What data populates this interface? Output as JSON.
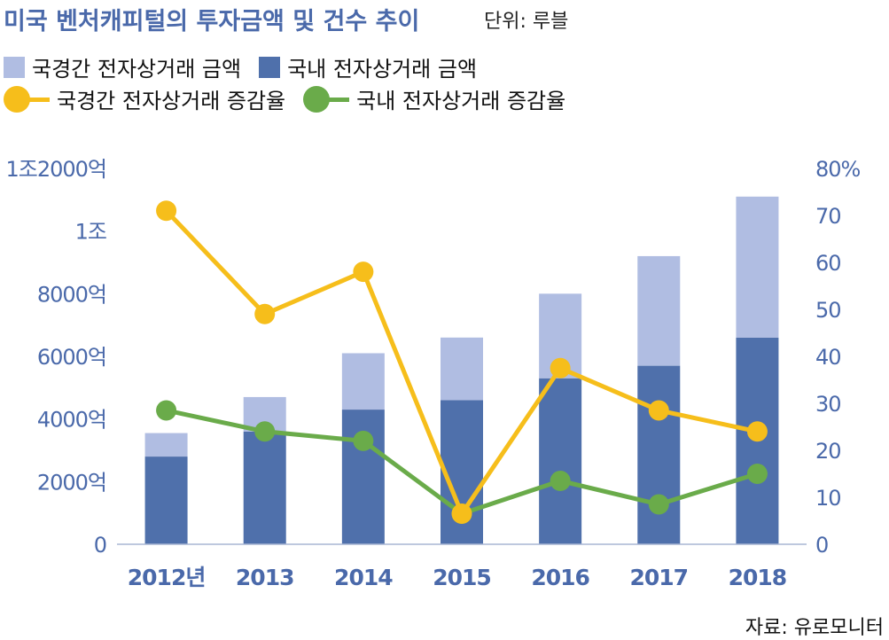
{
  "header": {
    "title": "미국 벤처캐피털의 투자금액 및 건수 추이",
    "unit": "단위: 루블"
  },
  "legend": {
    "intl_amount": "국경간 전자상거래 금액",
    "dom_amount": "국내 전자상거래 금액",
    "intl_growth": "국경간 전자상거래 증감율",
    "dom_growth": "국내 전자상거래 증감율"
  },
  "source": "자료: 유로모니터",
  "colors": {
    "intl_bar": "#b0bde2",
    "dom_bar": "#4f70ab",
    "intl_line": "#f6be1b",
    "dom_line": "#6aab4a",
    "axis_text": "#4a69aa"
  },
  "chart_data": {
    "type": "bar",
    "categories": [
      "2012년",
      "2013",
      "2014",
      "2015",
      "2016",
      "2017",
      "2018"
    ],
    "series": [
      {
        "name": "국내 전자상거래 금액",
        "kind": "bar",
        "stack": "amount",
        "axis": "left",
        "values": [
          2800,
          3600,
          4300,
          4600,
          5300,
          5700,
          6600
        ]
      },
      {
        "name": "국경간 전자상거래 금액",
        "kind": "bar",
        "stack": "amount",
        "axis": "left",
        "values": [
          750,
          1100,
          1800,
          2000,
          2700,
          3500,
          4500
        ]
      },
      {
        "name": "국경간 전자상거래 증감율",
        "kind": "line",
        "axis": "right",
        "values": [
          71,
          49,
          58,
          6.5,
          37.5,
          28.5,
          24
        ]
      },
      {
        "name": "국내 전자상거래 증감율",
        "kind": "line",
        "axis": "right",
        "values": [
          28.5,
          24,
          22,
          6.5,
          13.5,
          8.5,
          15
        ]
      }
    ],
    "left_ticks": [
      {
        "value": 0,
        "label": "0"
      },
      {
        "value": 2000,
        "label": "2000억"
      },
      {
        "value": 4000,
        "label": "4000억"
      },
      {
        "value": 6000,
        "label": "6000억"
      },
      {
        "value": 8000,
        "label": "8000억"
      },
      {
        "value": 10000,
        "label": "1조"
      },
      {
        "value": 12000,
        "label": "1조2000억"
      }
    ],
    "right_ticks": [
      {
        "value": 0,
        "label": "0"
      },
      {
        "value": 10,
        "label": "10"
      },
      {
        "value": 20,
        "label": "20"
      },
      {
        "value": 30,
        "label": "30"
      },
      {
        "value": 40,
        "label": "40"
      },
      {
        "value": 50,
        "label": "50"
      },
      {
        "value": 60,
        "label": "60"
      },
      {
        "value": 70,
        "label": "70"
      },
      {
        "value": 80,
        "label": "80%"
      }
    ],
    "ylim_left": [
      0,
      12000
    ],
    "ylim_right": [
      0,
      80
    ],
    "grid": false,
    "legend_position": "top-left"
  }
}
